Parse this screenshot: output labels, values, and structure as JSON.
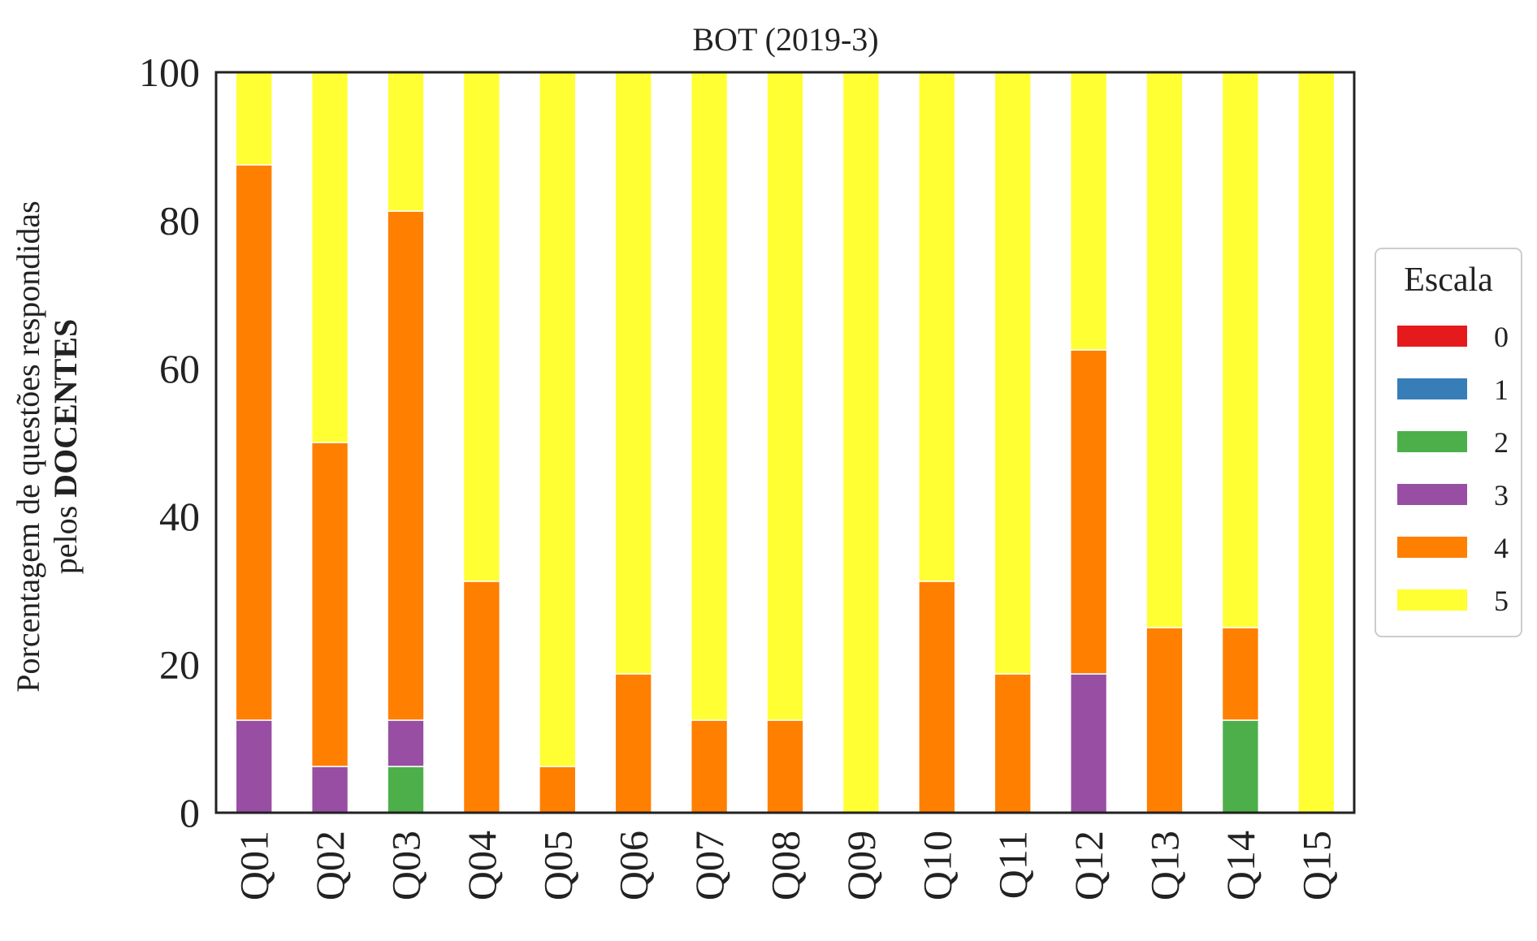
{
  "chart_data": {
    "type": "bar",
    "stacked": true,
    "title": "BOT (2019-3)",
    "ylabel_line1": "Porcentagem de questões respondidas",
    "ylabel_line2_prefix": "pelos ",
    "ylabel_line2_bold": "DOCENTES",
    "xlabel": "",
    "ylim": [
      0,
      100
    ],
    "yticks": [
      "0",
      "20",
      "40",
      "60",
      "80",
      "100"
    ],
    "grid": false,
    "categories": [
      "Q01",
      "Q02",
      "Q03",
      "Q04",
      "Q05",
      "Q06",
      "Q07",
      "Q08",
      "Q09",
      "Q10",
      "Q11",
      "Q12",
      "Q13",
      "Q14",
      "Q15"
    ],
    "legend": {
      "title": "Escala",
      "placement": "right-center"
    },
    "series": [
      {
        "name": "0",
        "color": "#e41a1c",
        "values": [
          0,
          0,
          0,
          0,
          0,
          0,
          0,
          0,
          0,
          0,
          0,
          0,
          0,
          0,
          0
        ]
      },
      {
        "name": "1",
        "color": "#377eb8",
        "values": [
          0,
          0,
          0,
          0,
          0,
          0,
          0,
          0,
          0,
          0,
          0,
          0,
          0,
          0,
          0
        ]
      },
      {
        "name": "2",
        "color": "#4daf4a",
        "values": [
          0,
          0,
          6.25,
          0,
          0,
          0,
          0,
          0,
          0,
          0,
          0,
          0,
          0,
          12.5,
          0
        ]
      },
      {
        "name": "3",
        "color": "#984ea3",
        "values": [
          12.5,
          6.25,
          6.25,
          0,
          0,
          0,
          0,
          0,
          0,
          0,
          0,
          18.75,
          0,
          0,
          0
        ]
      },
      {
        "name": "4",
        "color": "#ff7f00",
        "values": [
          75,
          43.75,
          68.75,
          31.25,
          6.25,
          18.75,
          12.5,
          12.5,
          0,
          31.25,
          18.75,
          43.75,
          25,
          12.5,
          0
        ]
      },
      {
        "name": "5",
        "color": "#ffff33",
        "values": [
          12.5,
          50,
          18.75,
          68.75,
          93.75,
          81.25,
          87.5,
          87.5,
          100,
          68.75,
          81.25,
          37.5,
          75,
          75,
          100
        ]
      }
    ]
  }
}
